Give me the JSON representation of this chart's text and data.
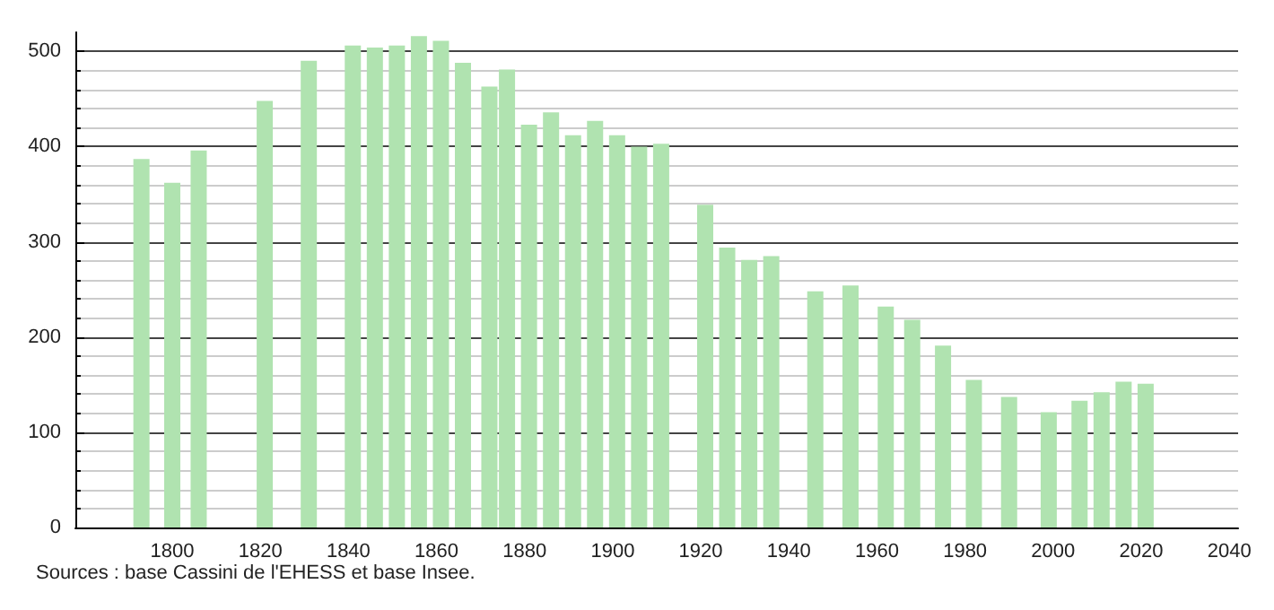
{
  "chart_data": {
    "type": "bar",
    "x": [
      1793,
      1800,
      1806,
      1821,
      1831,
      1841,
      1846,
      1851,
      1856,
      1861,
      1866,
      1872,
      1876,
      1881,
      1886,
      1891,
      1896,
      1901,
      1906,
      1911,
      1921,
      1926,
      1931,
      1936,
      1946,
      1954,
      1962,
      1968,
      1975,
      1982,
      1990,
      1999,
      2006,
      2011,
      2016,
      2021
    ],
    "values": [
      387,
      362,
      396,
      448,
      490,
      506,
      504,
      506,
      516,
      511,
      488,
      463,
      481,
      423,
      436,
      412,
      427,
      412,
      400,
      403,
      339,
      294,
      281,
      285,
      248,
      254,
      232,
      218,
      191,
      155,
      137,
      121,
      133,
      142,
      153,
      151
    ],
    "color": "#b0e3b0",
    "xlim": [
      1778,
      2042
    ],
    "xticks": [
      1800,
      1820,
      1840,
      1860,
      1880,
      1900,
      1920,
      1940,
      1960,
      1980,
      2000,
      2020,
      2040
    ],
    "ylim": [
      0,
      520
    ],
    "yticks": [
      0,
      100,
      200,
      300,
      400,
      500
    ],
    "grid": "y",
    "annotations": [
      "Sources : base Cassini de l'EHESS et base Insee."
    ]
  }
}
